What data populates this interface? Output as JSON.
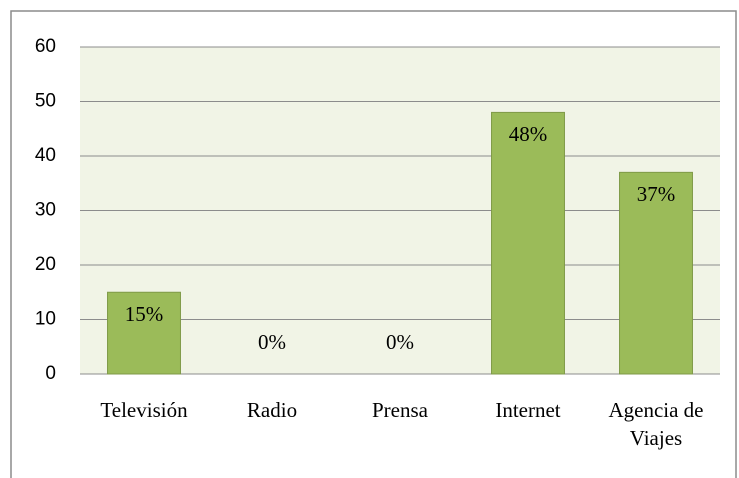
{
  "chart_data": {
    "type": "bar",
    "categories": [
      "Televisión",
      "Radio",
      "Prensa",
      "Internet",
      "Agencia de Viajes"
    ],
    "values": [
      15,
      0,
      0,
      48,
      37
    ],
    "value_labels": [
      "15%",
      "0%",
      "0%",
      "48%",
      "37%"
    ],
    "color": "#9bbb59",
    "ylim": [
      0,
      60
    ],
    "yticks": [
      0,
      10,
      20,
      30,
      40,
      50,
      60
    ],
    "grid": true
  }
}
